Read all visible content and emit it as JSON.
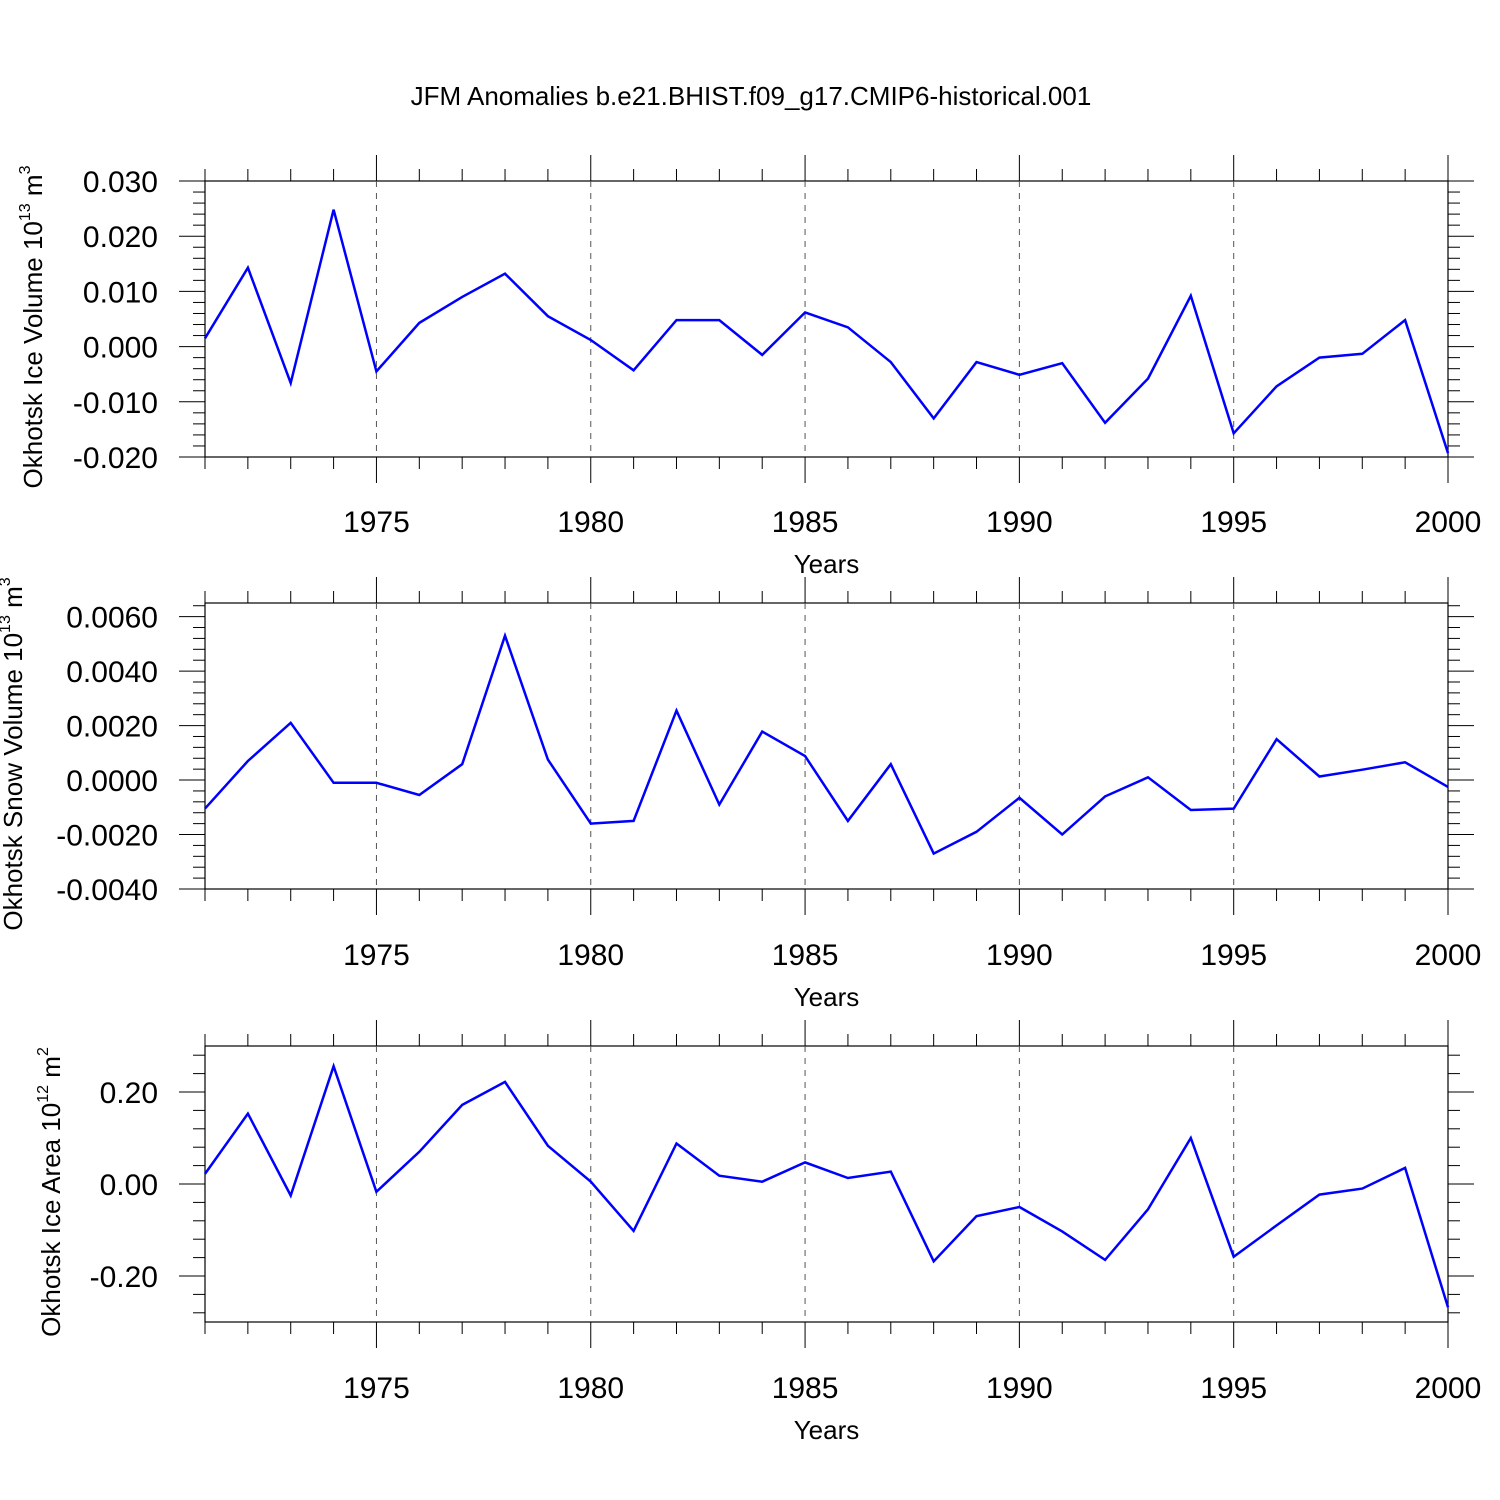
{
  "chart_data": {
    "title": "JFM Anomalies b.e21.BHIST.f09_g17.CMIP6-historical.001",
    "type": "line",
    "x_range": [
      1971,
      2000
    ],
    "panels": [
      {
        "name": "ice-volume",
        "type": "line",
        "ylabel_main": "Okhotsk Ice Volume 10",
        "ylabel_sup": "13",
        "ylabel_unit": " m",
        "ylabel_unit_sup": "3",
        "xlabel": "Years",
        "ylim": [
          -0.02,
          0.03
        ],
        "yticks": [
          -0.02,
          -0.01,
          0.0,
          0.01,
          0.02,
          0.03
        ],
        "ytick_labels": [
          "-0.020",
          "-0.010",
          "0.000",
          "0.010",
          "0.020",
          "0.030"
        ],
        "xticks": [
          1975,
          1980,
          1985,
          1990,
          1995,
          2000
        ],
        "xtick_labels": [
          "1975",
          "1980",
          "1985",
          "1990",
          "1995",
          "2000"
        ],
        "color": "#0000ff",
        "x": [
          1971,
          1972,
          1973,
          1974,
          1975,
          1976,
          1977,
          1978,
          1979,
          1980,
          1981,
          1982,
          1983,
          1984,
          1985,
          1986,
          1987,
          1988,
          1989,
          1990,
          1991,
          1992,
          1993,
          1994,
          1995,
          1996,
          1997,
          1998,
          1999,
          2000
        ],
        "values": [
          0.0015,
          0.0143,
          -0.0066,
          0.0248,
          -0.0045,
          0.0043,
          0.009,
          0.0132,
          0.0055,
          0.0012,
          -0.0043,
          0.0048,
          0.0048,
          -0.0015,
          0.0062,
          0.0035,
          -0.0028,
          -0.013,
          -0.0028,
          -0.0051,
          -0.003,
          -0.0138,
          -0.0058,
          0.0092,
          -0.0157,
          -0.0072,
          -0.002,
          -0.0013,
          0.0048,
          -0.0193
        ]
      },
      {
        "name": "snow-volume",
        "type": "line",
        "ylabel_main": "Okhotsk Snow Volume 10",
        "ylabel_sup": "13",
        "ylabel_unit": " m",
        "ylabel_unit_sup": "3",
        "xlabel": "Years",
        "ylim": [
          -0.004,
          0.0065
        ],
        "yticks": [
          -0.004,
          -0.002,
          0.0,
          0.002,
          0.004,
          0.006
        ],
        "ytick_labels": [
          "-0.0040",
          "-0.0020",
          "0.0000",
          "0.0020",
          "0.0040",
          "0.0060"
        ],
        "xticks": [
          1975,
          1980,
          1985,
          1990,
          1995,
          2000
        ],
        "xtick_labels": [
          "1975",
          "1980",
          "1985",
          "1990",
          "1995",
          "2000"
        ],
        "color": "#0000ff",
        "x": [
          1971,
          1972,
          1973,
          1974,
          1975,
          1976,
          1977,
          1978,
          1979,
          1980,
          1981,
          1982,
          1983,
          1984,
          1985,
          1986,
          1987,
          1988,
          1989,
          1990,
          1991,
          1992,
          1993,
          1994,
          1995,
          1996,
          1997,
          1998,
          1999,
          2000
        ],
        "values": [
          -0.00105,
          0.0007,
          0.0021,
          -0.0001,
          -0.0001,
          -0.00055,
          0.00058,
          0.0053,
          0.00075,
          -0.0016,
          -0.0015,
          0.00255,
          -0.0009,
          0.00178,
          0.00088,
          -0.0015,
          0.00058,
          -0.0027,
          -0.0019,
          -0.00065,
          -0.002,
          -0.0006,
          0.0001,
          -0.0011,
          -0.00105,
          0.0015,
          0.00013,
          0.00038,
          0.00065,
          -0.00025
        ]
      },
      {
        "name": "ice-area",
        "type": "line",
        "ylabel_main": "Okhotsk Ice Area 10",
        "ylabel_sup": "12",
        "ylabel_unit": " m",
        "ylabel_unit_sup": "2",
        "xlabel": "Years",
        "ylim": [
          -0.3,
          0.3
        ],
        "yticks": [
          -0.2,
          0.0,
          0.2
        ],
        "ytick_labels": [
          "-0.20",
          "0.00",
          "0.20"
        ],
        "xticks": [
          1975,
          1980,
          1985,
          1990,
          1995,
          2000
        ],
        "xtick_labels": [
          "1975",
          "1980",
          "1985",
          "1990",
          "1995",
          "2000"
        ],
        "color": "#0000ff",
        "x": [
          1971,
          1972,
          1973,
          1974,
          1975,
          1976,
          1977,
          1978,
          1979,
          1980,
          1981,
          1982,
          1983,
          1984,
          1985,
          1986,
          1987,
          1988,
          1989,
          1990,
          1991,
          1992,
          1993,
          1994,
          1995,
          1996,
          1997,
          1998,
          1999,
          2000
        ],
        "values": [
          0.022,
          0.153,
          -0.025,
          0.256,
          -0.017,
          0.07,
          0.172,
          0.222,
          0.083,
          0.005,
          -0.102,
          0.088,
          0.018,
          0.005,
          0.047,
          0.013,
          0.027,
          -0.168,
          -0.07,
          -0.05,
          -0.103,
          -0.165,
          -0.055,
          0.1,
          -0.158,
          -0.09,
          -0.023,
          -0.01,
          0.035,
          -0.268
        ]
      }
    ]
  }
}
